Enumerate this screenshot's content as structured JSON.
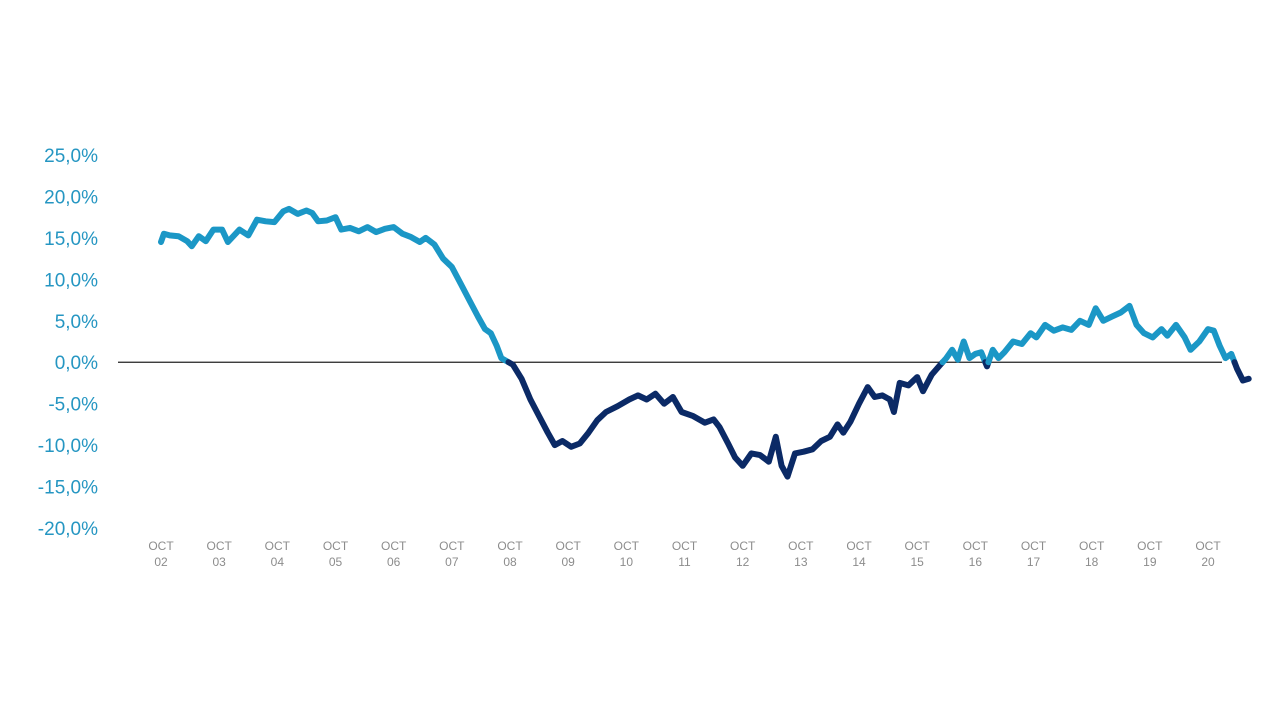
{
  "chart_data": {
    "type": "line",
    "title": "",
    "xlabel": "",
    "ylabel": "",
    "ylim": [
      -20,
      25
    ],
    "xlim": [
      2002,
      2020
    ],
    "grid": false,
    "zero_line": true,
    "y_ticks": [
      {
        "value": 25,
        "label": "25,0%"
      },
      {
        "value": 20,
        "label": "20,0%"
      },
      {
        "value": 15,
        "label": "15,0%"
      },
      {
        "value": 10,
        "label": "10,0%"
      },
      {
        "value": 5,
        "label": "5,0%"
      },
      {
        "value": 0,
        "label": "0,0%"
      },
      {
        "value": -5,
        "label": "-5,0%"
      },
      {
        "value": -10,
        "label": "-10,0%"
      },
      {
        "value": -15,
        "label": "-15,0%"
      },
      {
        "value": -20,
        "label": "-20,0%"
      }
    ],
    "x_ticks": [
      {
        "value": 2002,
        "line1": "OCT",
        "line2": "02"
      },
      {
        "value": 2003,
        "line1": "OCT",
        "line2": "03"
      },
      {
        "value": 2004,
        "line1": "OCT",
        "line2": "04"
      },
      {
        "value": 2005,
        "line1": "OCT",
        "line2": "05"
      },
      {
        "value": 2006,
        "line1": "OCT",
        "line2": "06"
      },
      {
        "value": 2007,
        "line1": "OCT",
        "line2": "07"
      },
      {
        "value": 2008,
        "line1": "OCT",
        "line2": "08"
      },
      {
        "value": 2009,
        "line1": "OCT",
        "line2": "09"
      },
      {
        "value": 2010,
        "line1": "OCT",
        "line2": "10"
      },
      {
        "value": 2011,
        "line1": "OCT",
        "line2": "11"
      },
      {
        "value": 2012,
        "line1": "OCT",
        "line2": "12"
      },
      {
        "value": 2013,
        "line1": "OCT",
        "line2": "13"
      },
      {
        "value": 2014,
        "line1": "OCT",
        "line2": "14"
      },
      {
        "value": 2015,
        "line1": "OCT",
        "line2": "15"
      },
      {
        "value": 2016,
        "line1": "OCT",
        "line2": "16"
      },
      {
        "value": 2017,
        "line1": "OCT",
        "line2": "17"
      },
      {
        "value": 2018,
        "line1": "OCT",
        "line2": "18"
      },
      {
        "value": 2019,
        "line1": "OCT",
        "line2": "19"
      },
      {
        "value": 2020,
        "line1": "OCT",
        "line2": "20"
      }
    ],
    "colors": {
      "positive": "#1b97c6",
      "negative": "#0b2a66",
      "tick_y": "#2596c2",
      "tick_x": "#8c8c8c",
      "zero_line": "#222222"
    },
    "series": [
      {
        "points": [
          [
            1981.85,
            14.5
          ],
          [
            1981.9,
            15.5
          ],
          [
            1982.0,
            15.3
          ],
          [
            1982.15,
            15.2
          ],
          [
            1982.3,
            14.6
          ],
          [
            1982.38,
            14.0
          ],
          [
            1982.5,
            15.2
          ],
          [
            1982.62,
            14.6
          ],
          [
            1982.75,
            16.0
          ],
          [
            1982.9,
            16.0
          ],
          [
            1983.0,
            14.5
          ],
          [
            1983.2,
            16.0
          ],
          [
            1983.35,
            15.3
          ],
          [
            1983.5,
            17.2
          ],
          [
            1983.65,
            17.0
          ],
          [
            1983.8,
            16.9
          ],
          [
            1983.95,
            18.2
          ],
          [
            1984.05,
            18.5
          ],
          [
            1984.2,
            17.9
          ],
          [
            1984.35,
            18.3
          ],
          [
            1984.45,
            18.0
          ],
          [
            1984.55,
            17.0
          ],
          [
            1984.7,
            17.1
          ],
          [
            1984.85,
            17.5
          ],
          [
            1984.95,
            16.0
          ],
          [
            1985.1,
            16.2
          ],
          [
            1985.25,
            15.8
          ],
          [
            1985.4,
            16.3
          ],
          [
            1985.55,
            15.7
          ],
          [
            1985.7,
            16.1
          ],
          [
            1985.85,
            16.3
          ],
          [
            1986.0,
            15.5
          ],
          [
            1986.15,
            15.1
          ],
          [
            1986.3,
            14.5
          ],
          [
            1986.4,
            15.0
          ],
          [
            1986.55,
            14.2
          ],
          [
            1986.7,
            12.5
          ],
          [
            1986.85,
            11.5
          ],
          [
            1987.0,
            9.5
          ],
          [
            1987.15,
            7.5
          ],
          [
            1987.3,
            5.5
          ],
          [
            1987.42,
            4.0
          ],
          [
            1987.52,
            3.5
          ],
          [
            1987.62,
            2.0
          ],
          [
            1987.7,
            0.5
          ],
          [
            1987.9,
            -0.3
          ],
          [
            1988.05,
            -2.0
          ],
          [
            1988.2,
            -4.5
          ],
          [
            1988.35,
            -6.5
          ],
          [
            1988.5,
            -8.5
          ],
          [
            1988.62,
            -10.0
          ],
          [
            1988.75,
            -9.5
          ],
          [
            1988.9,
            -10.2
          ],
          [
            1989.05,
            -9.8
          ],
          [
            1989.2,
            -8.5
          ],
          [
            1989.35,
            -7.0
          ],
          [
            1989.5,
            -6.0
          ],
          [
            1989.7,
            -5.3
          ],
          [
            1989.9,
            -4.5
          ],
          [
            1990.05,
            -4.0
          ],
          [
            1990.2,
            -4.5
          ],
          [
            1990.35,
            -3.8
          ],
          [
            1990.5,
            -5.0
          ],
          [
            1990.65,
            -4.2
          ],
          [
            1990.8,
            -6.0
          ],
          [
            1991.0,
            -6.5
          ],
          [
            1991.2,
            -7.3
          ],
          [
            1991.35,
            -6.9
          ],
          [
            1991.45,
            -7.8
          ],
          [
            1991.6,
            -9.8
          ],
          [
            1991.72,
            -11.5
          ],
          [
            1991.85,
            -12.5
          ],
          [
            1992.0,
            -11.0
          ],
          [
            1992.15,
            -11.2
          ],
          [
            1992.3,
            -12.0
          ],
          [
            1992.42,
            -9.0
          ],
          [
            1992.52,
            -12.5
          ],
          [
            1992.62,
            -13.8
          ],
          [
            1992.75,
            -11.0
          ],
          [
            1992.9,
            -10.8
          ],
          [
            1993.05,
            -10.5
          ],
          [
            1993.2,
            -9.5
          ],
          [
            1993.35,
            -9.0
          ],
          [
            1993.48,
            -7.5
          ],
          [
            1993.58,
            -8.5
          ],
          [
            1993.7,
            -7.2
          ],
          [
            1993.85,
            -5.0
          ],
          [
            1994.0,
            -3.0
          ],
          [
            1994.12,
            -4.2
          ],
          [
            1994.25,
            -4.0
          ],
          [
            1994.38,
            -4.5
          ],
          [
            1994.45,
            -6.0
          ],
          [
            1994.55,
            -2.5
          ],
          [
            1994.7,
            -2.8
          ],
          [
            1994.85,
            -1.8
          ],
          [
            1994.95,
            -3.5
          ],
          [
            1995.1,
            -1.5
          ],
          [
            1995.25,
            -0.3
          ],
          [
            1995.35,
            0.5
          ],
          [
            1995.45,
            1.5
          ],
          [
            1995.55,
            0.3
          ],
          [
            1995.65,
            2.5
          ],
          [
            1995.75,
            0.5
          ],
          [
            1995.85,
            1.0
          ],
          [
            1995.95,
            1.2
          ],
          [
            1996.05,
            -0.5
          ],
          [
            1996.15,
            1.5
          ],
          [
            1996.25,
            0.5
          ],
          [
            1996.35,
            1.2
          ],
          [
            1996.5,
            2.5
          ],
          [
            1996.65,
            2.2
          ],
          [
            1996.8,
            3.5
          ],
          [
            1996.9,
            3.0
          ],
          [
            1997.05,
            4.5
          ],
          [
            1997.2,
            3.8
          ],
          [
            1997.35,
            4.2
          ],
          [
            1997.5,
            3.9
          ],
          [
            1997.65,
            5.0
          ],
          [
            1997.8,
            4.5
          ],
          [
            1997.92,
            6.5
          ],
          [
            1998.05,
            5.0
          ],
          [
            1998.2,
            5.5
          ],
          [
            1998.35,
            6.0
          ],
          [
            1998.5,
            6.8
          ],
          [
            1998.62,
            4.5
          ],
          [
            1998.75,
            3.5
          ],
          [
            1998.9,
            3.0
          ],
          [
            1999.05,
            4.0
          ],
          [
            1999.15,
            3.2
          ],
          [
            1999.3,
            4.5
          ],
          [
            1999.45,
            3.0
          ],
          [
            1999.55,
            1.5
          ],
          [
            1999.7,
            2.5
          ],
          [
            1999.85,
            4.0
          ],
          [
            1999.95,
            3.8
          ],
          [
            2000.05,
            2.0
          ],
          [
            2000.15,
            0.5
          ],
          [
            2000.25,
            1.0
          ],
          [
            2000.35,
            -0.8
          ],
          [
            2000.45,
            -2.2
          ],
          [
            2000.55,
            -2.0
          ]
        ]
      }
    ]
  }
}
